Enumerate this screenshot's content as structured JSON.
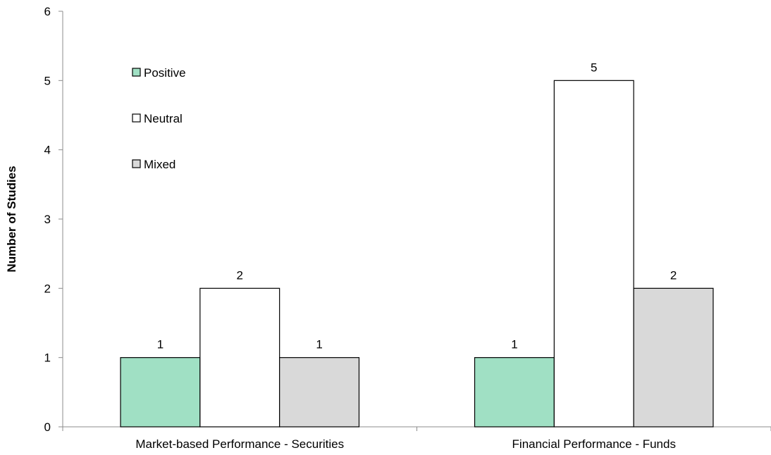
{
  "chart_data": {
    "type": "bar",
    "title": "",
    "xlabel": "",
    "ylabel": "Number of Studies",
    "categories": [
      "Market-based Performance - Securities",
      "Financial Performance - Funds"
    ],
    "series": [
      {
        "name": "Positive",
        "values": [
          1,
          1
        ],
        "color": "#a0e0c4"
      },
      {
        "name": "Neutral",
        "values": [
          2,
          5
        ],
        "color": "#ffffff"
      },
      {
        "name": "Mixed",
        "values": [
          1,
          2
        ],
        "color": "#d9d9d9"
      }
    ],
    "ylim": [
      0,
      6
    ],
    "yticks": [
      0,
      1,
      2,
      3,
      4,
      5,
      6
    ],
    "grid": false,
    "data_labels": true,
    "legend_position": "top-left"
  }
}
